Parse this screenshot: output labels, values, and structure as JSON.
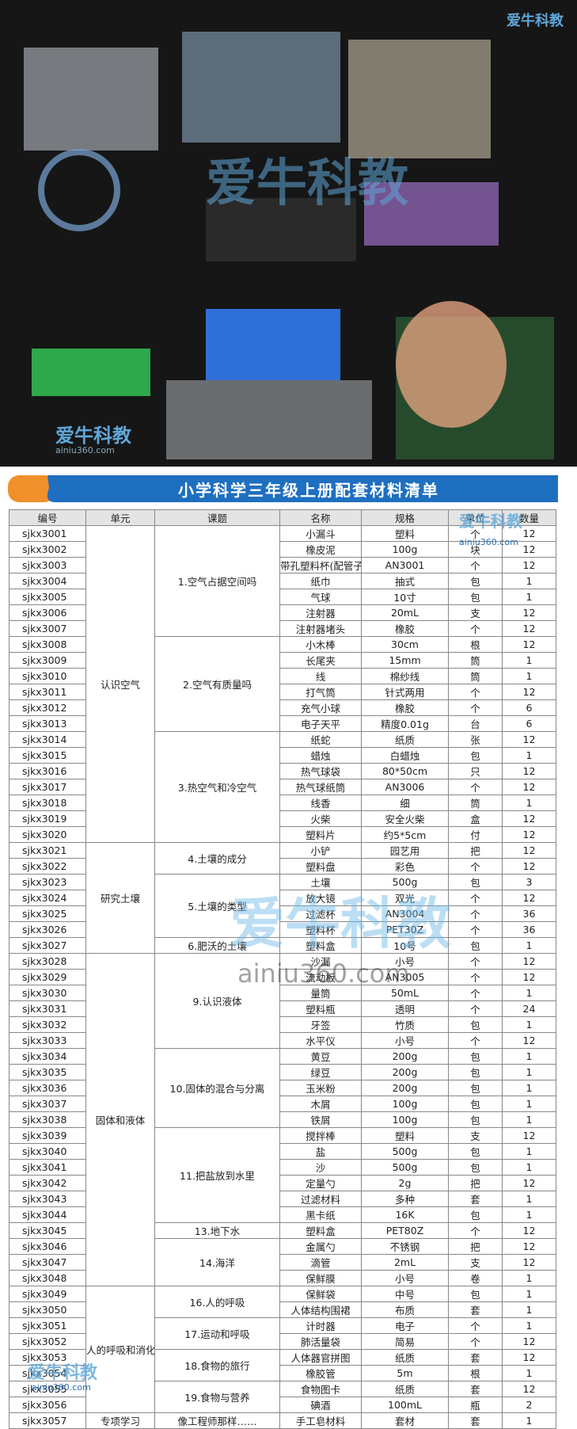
{
  "brand": {
    "name": "爱牛科教",
    "site": "ainiu360.com"
  },
  "title": "小学科学三年级上册配套材料清单",
  "table": {
    "header": [
      "编号",
      "单元",
      "课题",
      "名称",
      "规格",
      "单位",
      "数量"
    ],
    "units": [
      {
        "name": "认识空气",
        "lessons": [
          {
            "name": "1.空气占据空间吗",
            "items": [
              [
                "sjkx3001",
                "小漏斗",
                "塑料",
                "个",
                12
              ],
              [
                "sjkx3002",
                "橡皮泥",
                "100g",
                "块",
                12
              ],
              [
                "sjkx3003",
                "带孔塑料杯(配管子)",
                "AN3001",
                "个",
                12
              ],
              [
                "sjkx3004",
                "纸巾",
                "抽式",
                "包",
                1
              ],
              [
                "sjkx3005",
                "气球",
                "10寸",
                "包",
                1
              ],
              [
                "sjkx3006",
                "注射器",
                "20mL",
                "支",
                12
              ],
              [
                "sjkx3007",
                "注射器堵头",
                "橡胶",
                "个",
                12
              ]
            ]
          },
          {
            "name": "2.空气有质量吗",
            "items": [
              [
                "sjkx3008",
                "小木棒",
                "30cm",
                "根",
                12
              ],
              [
                "sjkx3009",
                "长尾夹",
                "15mm",
                "筒",
                1
              ],
              [
                "sjkx3010",
                "线",
                "棉纱线",
                "筒",
                1
              ],
              [
                "sjkx3011",
                "打气筒",
                "针式两用",
                "个",
                12
              ],
              [
                "sjkx3012",
                "充气小球",
                "橡胶",
                "个",
                6
              ],
              [
                "sjkx3013",
                "电子天平",
                "精度0.01g",
                "台",
                6
              ]
            ]
          },
          {
            "name": "3.热空气和冷空气",
            "items": [
              [
                "sjkx3014",
                "纸蛇",
                "纸质",
                "张",
                12
              ],
              [
                "sjkx3015",
                "蜡烛",
                "白蜡烛",
                "包",
                1
              ],
              [
                "sjkx3016",
                "热气球袋",
                "80*50cm",
                "只",
                12
              ],
              [
                "sjkx3017",
                "热气球纸筒",
                "AN3006",
                "个",
                12
              ],
              [
                "sjkx3018",
                "线香",
                "细",
                "筒",
                1
              ],
              [
                "sjkx3019",
                "火柴",
                "安全火柴",
                "盒",
                12
              ],
              [
                "sjkx3020",
                "塑料片",
                "约5*5cm",
                "付",
                12
              ]
            ]
          }
        ]
      },
      {
        "name": "研究土壤",
        "lessons": [
          {
            "name": "4.土壤的成分",
            "items": [
              [
                "sjkx3021",
                "小铲",
                "园艺用",
                "把",
                12
              ],
              [
                "sjkx3022",
                "塑料盘",
                "彩色",
                "个",
                12
              ]
            ]
          },
          {
            "name": "5.土壤的类型",
            "items": [
              [
                "sjkx3023",
                "土壤",
                "500g",
                "包",
                3
              ],
              [
                "sjkx3024",
                "放大镜",
                "双光",
                "个",
                12
              ],
              [
                "sjkx3025",
                "过滤杯",
                "AN3004",
                "个",
                36
              ],
              [
                "sjkx3026",
                "塑料杯",
                "PET30Z",
                "个",
                36
              ]
            ]
          },
          {
            "name": "6.肥沃的土壤",
            "items": [
              [
                "sjkx3027",
                "塑料盒",
                "10号",
                "包",
                1
              ]
            ]
          }
        ]
      },
      {
        "name": "固体和液体",
        "lessons": [
          {
            "name": "9.认识液体",
            "items": [
              [
                "sjkx3028",
                "沙漏",
                "小号",
                "个",
                12
              ],
              [
                "sjkx3029",
                "流动板",
                "AN3005",
                "个",
                12
              ],
              [
                "sjkx3030",
                "量筒",
                "50mL",
                "个",
                1
              ],
              [
                "sjkx3031",
                "塑料瓶",
                "透明",
                "个",
                24
              ],
              [
                "sjkx3032",
                "牙签",
                "竹质",
                "包",
                1
              ],
              [
                "sjkx3033",
                "水平仪",
                "小号",
                "个",
                12
              ]
            ]
          },
          {
            "name": "10.固体的混合与分离",
            "items": [
              [
                "sjkx3034",
                "黄豆",
                "200g",
                "包",
                1
              ],
              [
                "sjkx3035",
                "绿豆",
                "200g",
                "包",
                1
              ],
              [
                "sjkx3036",
                "玉米粉",
                "200g",
                "包",
                1
              ],
              [
                "sjkx3037",
                "木屑",
                "100g",
                "包",
                1
              ],
              [
                "sjkx3038",
                "铁屑",
                "100g",
                "包",
                1
              ]
            ]
          },
          {
            "name": "11.把盐放到水里",
            "items": [
              [
                "sjkx3039",
                "搅拌棒",
                "塑料",
                "支",
                12
              ],
              [
                "sjkx3040",
                "盐",
                "500g",
                "包",
                1
              ],
              [
                "sjkx3041",
                "沙",
                "500g",
                "包",
                1
              ],
              [
                "sjkx3042",
                "定量勺",
                "2g",
                "把",
                12
              ],
              [
                "sjkx3043",
                "过滤材料",
                "多种",
                "套",
                1
              ],
              [
                "sjkx3044",
                "黑卡纸",
                "16K",
                "包",
                1
              ]
            ]
          },
          {
            "name": "13.地下水",
            "items": [
              [
                "sjkx3045",
                "塑料盒",
                "PET80Z",
                "个",
                12
              ]
            ]
          },
          {
            "name": "14.海洋",
            "items": [
              [
                "sjkx3046",
                "金属勺",
                "不锈钢",
                "把",
                12
              ],
              [
                "sjkx3047",
                "滴管",
                "2mL",
                "支",
                12
              ],
              [
                "sjkx3048",
                "保鲜膜",
                "小号",
                "卷",
                1
              ]
            ]
          }
        ]
      },
      {
        "name": "人的呼吸和消化",
        "lessons": [
          {
            "name": "16.人的呼吸",
            "items": [
              [
                "sjkx3049",
                "保鲜袋",
                "中号",
                "包",
                1
              ],
              [
                "sjkx3050",
                "人体结构围裙",
                "布质",
                "套",
                1
              ]
            ]
          },
          {
            "name": "17.运动和呼吸",
            "items": [
              [
                "sjkx3051",
                "计时器",
                "电子",
                "个",
                1
              ],
              [
                "sjkx3052",
                "肺活量袋",
                "简易",
                "个",
                12
              ]
            ]
          },
          {
            "name": "18.食物的旅行",
            "items": [
              [
                "sjkx3053",
                "人体器官拼图",
                "纸质",
                "套",
                12
              ],
              [
                "sjkx3054",
                "橡胶管",
                "5m",
                "根",
                1
              ]
            ]
          },
          {
            "name": "19.食物与营养",
            "items": [
              [
                "sjkx3055",
                "食物图卡",
                "纸质",
                "套",
                12
              ],
              [
                "sjkx3056",
                "碘酒",
                "100mL",
                "瓶",
                2
              ]
            ]
          }
        ]
      },
      {
        "name": "专项学习",
        "lessons": [
          {
            "name": "像工程师那样……",
            "items": [
              [
                "sjkx3057",
                "手工皂材料",
                "套材",
                "套",
                1
              ]
            ]
          }
        ]
      }
    ]
  }
}
